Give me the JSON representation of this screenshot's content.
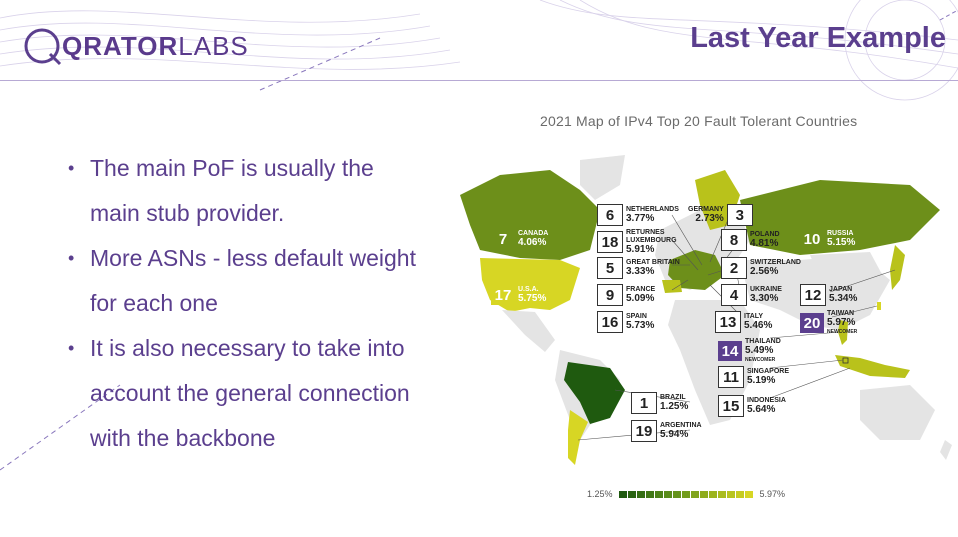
{
  "header": {
    "logo_bold": "QRATOR",
    "logo_light": "LABS",
    "title": "Last Year Example"
  },
  "bullets": [
    "The main PoF is usually the main stub provider.",
    "More ASNs - less default weight for each one",
    "It is also necessary to take into account the general connection with the backbone"
  ],
  "map": {
    "title": "2021 Map of IPv4 Top 20 Fault Tolerant Countries",
    "labels": [
      {
        "rank": "6",
        "country": "NETHERLANDS",
        "value": "3.77%"
      },
      {
        "rank": "18",
        "country": "RETURNES LUXEMBOURG",
        "value": "5.91%"
      },
      {
        "rank": "5",
        "country": "GREAT BRITAIN",
        "value": "3.33%"
      },
      {
        "rank": "9",
        "country": "FRANCE",
        "value": "5.09%"
      },
      {
        "rank": "16",
        "country": "SPAIN",
        "value": "5.73%"
      },
      {
        "rank": "3",
        "country": "GERMANY",
        "value": "2.73%"
      },
      {
        "rank": "8",
        "country": "POLAND",
        "value": "4.81%"
      },
      {
        "rank": "2",
        "country": "SWITZERLAND",
        "value": "2.56%"
      },
      {
        "rank": "4",
        "country": "UKRAINE",
        "value": "3.30%"
      },
      {
        "rank": "13",
        "country": "ITALY",
        "value": "5.46%"
      },
      {
        "rank": "7",
        "country": "CANADA",
        "value": "4.06%"
      },
      {
        "rank": "17",
        "country": "U.S.A.",
        "value": "5.75%"
      },
      {
        "rank": "10",
        "country": "RUSSIA",
        "value": "5.15%"
      },
      {
        "rank": "12",
        "country": "JAPAN",
        "value": "5.34%"
      },
      {
        "rank": "20",
        "country": "TAIWAN",
        "value": "5.97%",
        "note": "NEWCOMER"
      },
      {
        "rank": "14",
        "country": "THAILAND",
        "value": "5.49%",
        "note": "NEWCOMER"
      },
      {
        "rank": "11",
        "country": "SINGAPORE",
        "value": "5.19%"
      },
      {
        "rank": "15",
        "country": "INDONESIA",
        "value": "5.64%"
      },
      {
        "rank": "1",
        "country": "BRAZIL",
        "value": "1.25%"
      },
      {
        "rank": "19",
        "country": "ARGENTINA",
        "value": "5.94%"
      }
    ],
    "legend_min": "1.25%",
    "legend_max": "5.97%",
    "colors": {
      "darkest": "#1f5a0f",
      "mid": "#6d8f1a",
      "light": "#b9c21b",
      "lightest": "#d7d624",
      "gray": "#e4e4e4",
      "purple": "#5b3f8e"
    }
  }
}
